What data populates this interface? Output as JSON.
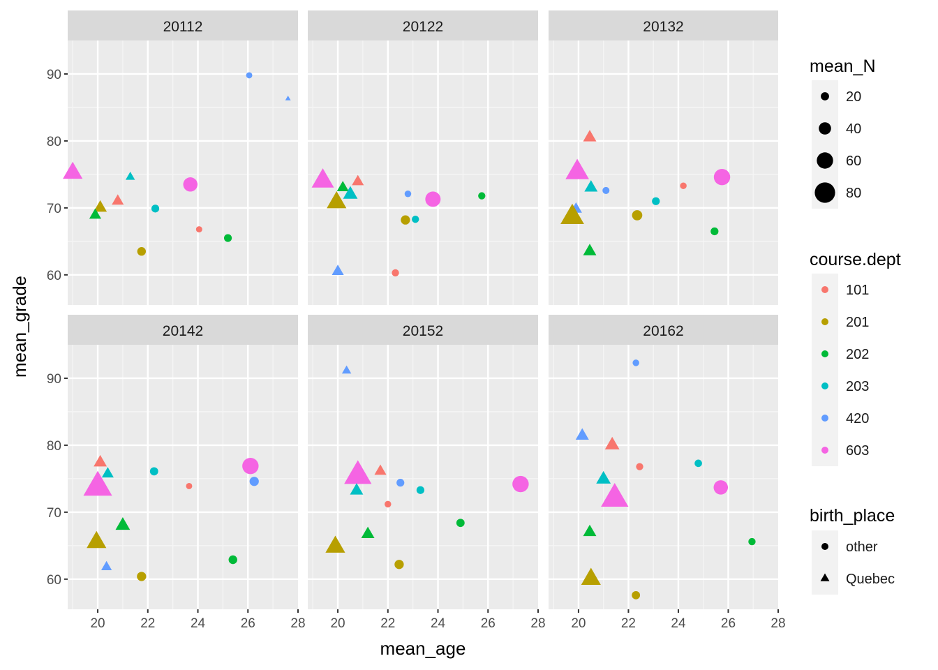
{
  "colors": {
    "panel_bg": "#EBEBEB",
    "strip_bg": "#D9D9D9",
    "grid_major": "#FFFFFF",
    "axis_text": "#4D4D4D",
    "title_text": "#000000"
  },
  "chart_data": {
    "type": "scatter",
    "facet_by": "term",
    "xlabel": "mean_age",
    "ylabel": "mean_grade",
    "xlim": [
      18.8,
      28.0
    ],
    "ylim": [
      55.5,
      95.0
    ],
    "x_ticks": [
      20,
      22,
      24,
      26,
      28
    ],
    "y_ticks": [
      60,
      70,
      80,
      90
    ],
    "grid": true,
    "legend_position": "right",
    "legends": {
      "size": {
        "title": "mean_N",
        "entries": [
          20,
          40,
          60,
          80
        ]
      },
      "color": {
        "title": "course.dept",
        "entries": [
          "101",
          "201",
          "202",
          "203",
          "420",
          "603"
        ],
        "colors": [
          "#F8766D",
          "#B79F00",
          "#00BA38",
          "#00BFC4",
          "#619CFF",
          "#F564E3"
        ]
      },
      "shape": {
        "title": "birth_place",
        "entries": [
          "other",
          "Quebec"
        ],
        "shapes": [
          "circle",
          "triangle"
        ]
      }
    },
    "facets": [
      {
        "label": "20112",
        "points": [
          {
            "x": 26.05,
            "y": 89.8,
            "dept": "420",
            "shape": "circle",
            "n": 10
          },
          {
            "x": 27.6,
            "y": 86.3,
            "dept": "420",
            "shape": "triangle",
            "n": 5
          },
          {
            "x": 19.0,
            "y": 75.2,
            "dept": "603",
            "shape": "triangle",
            "n": 60
          },
          {
            "x": 21.3,
            "y": 74.6,
            "dept": "203",
            "shape": "triangle",
            "n": 20
          },
          {
            "x": 23.7,
            "y": 73.5,
            "dept": "603",
            "shape": "circle",
            "n": 50
          },
          {
            "x": 20.8,
            "y": 71.0,
            "dept": "101",
            "shape": "triangle",
            "n": 30
          },
          {
            "x": 20.1,
            "y": 70.0,
            "dept": "201",
            "shape": "triangle",
            "n": 35
          },
          {
            "x": 22.3,
            "y": 69.9,
            "dept": "203",
            "shape": "circle",
            "n": 18
          },
          {
            "x": 19.9,
            "y": 68.9,
            "dept": "202",
            "shape": "triangle",
            "n": 30
          },
          {
            "x": 24.05,
            "y": 66.8,
            "dept": "101",
            "shape": "circle",
            "n": 10
          },
          {
            "x": 25.2,
            "y": 65.5,
            "dept": "202",
            "shape": "circle",
            "n": 18
          },
          {
            "x": 21.75,
            "y": 63.5,
            "dept": "201",
            "shape": "circle",
            "n": 22
          }
        ]
      },
      {
        "label": "20122",
        "points": [
          {
            "x": 19.4,
            "y": 74.0,
            "dept": "603",
            "shape": "triangle",
            "n": 70
          },
          {
            "x": 20.8,
            "y": 73.9,
            "dept": "101",
            "shape": "triangle",
            "n": 30
          },
          {
            "x": 20.2,
            "y": 73.0,
            "dept": "202",
            "shape": "triangle",
            "n": 30
          },
          {
            "x": 20.5,
            "y": 72.0,
            "dept": "203",
            "shape": "triangle",
            "n": 40
          },
          {
            "x": 22.8,
            "y": 72.1,
            "dept": "420",
            "shape": "circle",
            "n": 12
          },
          {
            "x": 25.75,
            "y": 71.8,
            "dept": "202",
            "shape": "circle",
            "n": 15
          },
          {
            "x": 23.8,
            "y": 71.3,
            "dept": "603",
            "shape": "circle",
            "n": 55
          },
          {
            "x": 19.95,
            "y": 70.8,
            "dept": "201",
            "shape": "triangle",
            "n": 60
          },
          {
            "x": 22.7,
            "y": 68.2,
            "dept": "201",
            "shape": "circle",
            "n": 25
          },
          {
            "x": 23.1,
            "y": 68.3,
            "dept": "203",
            "shape": "circle",
            "n": 15
          },
          {
            "x": 20.0,
            "y": 60.5,
            "dept": "420",
            "shape": "triangle",
            "n": 30
          },
          {
            "x": 22.3,
            "y": 60.3,
            "dept": "101",
            "shape": "circle",
            "n": 15
          }
        ]
      },
      {
        "label": "20132",
        "points": [
          {
            "x": 20.45,
            "y": 80.5,
            "dept": "101",
            "shape": "triangle",
            "n": 35
          },
          {
            "x": 19.95,
            "y": 75.3,
            "dept": "603",
            "shape": "triangle",
            "n": 75
          },
          {
            "x": 24.2,
            "y": 73.3,
            "dept": "101",
            "shape": "circle",
            "n": 12
          },
          {
            "x": 20.5,
            "y": 73.0,
            "dept": "203",
            "shape": "triangle",
            "n": 35
          },
          {
            "x": 25.75,
            "y": 74.6,
            "dept": "603",
            "shape": "circle",
            "n": 60
          },
          {
            "x": 21.1,
            "y": 72.6,
            "dept": "420",
            "shape": "circle",
            "n": 14
          },
          {
            "x": 23.1,
            "y": 71.0,
            "dept": "203",
            "shape": "circle",
            "n": 18
          },
          {
            "x": 19.9,
            "y": 69.8,
            "dept": "420",
            "shape": "triangle",
            "n": 30
          },
          {
            "x": 19.75,
            "y": 68.6,
            "dept": "201",
            "shape": "triangle",
            "n": 75
          },
          {
            "x": 22.35,
            "y": 68.9,
            "dept": "201",
            "shape": "circle",
            "n": 30
          },
          {
            "x": 25.45,
            "y": 66.5,
            "dept": "202",
            "shape": "circle",
            "n": 18
          },
          {
            "x": 20.45,
            "y": 63.5,
            "dept": "202",
            "shape": "triangle",
            "n": 35
          }
        ]
      },
      {
        "label": "20142",
        "points": [
          {
            "x": 20.1,
            "y": 77.4,
            "dept": "101",
            "shape": "triangle",
            "n": 35
          },
          {
            "x": 22.25,
            "y": 76.1,
            "dept": "203",
            "shape": "circle",
            "n": 20
          },
          {
            "x": 26.1,
            "y": 76.9,
            "dept": "603",
            "shape": "circle",
            "n": 60
          },
          {
            "x": 20.4,
            "y": 75.7,
            "dept": "203",
            "shape": "triangle",
            "n": 30
          },
          {
            "x": 26.25,
            "y": 74.6,
            "dept": "420",
            "shape": "circle",
            "n": 25
          },
          {
            "x": 23.65,
            "y": 73.9,
            "dept": "101",
            "shape": "circle",
            "n": 10
          },
          {
            "x": 20.0,
            "y": 73.7,
            "dept": "603",
            "shape": "triangle",
            "n": 95
          },
          {
            "x": 21.0,
            "y": 68.0,
            "dept": "202",
            "shape": "triangle",
            "n": 40
          },
          {
            "x": 19.95,
            "y": 65.5,
            "dept": "201",
            "shape": "triangle",
            "n": 60
          },
          {
            "x": 25.4,
            "y": 62.9,
            "dept": "202",
            "shape": "circle",
            "n": 22
          },
          {
            "x": 20.35,
            "y": 61.8,
            "dept": "420",
            "shape": "triangle",
            "n": 25
          },
          {
            "x": 21.75,
            "y": 60.4,
            "dept": "201",
            "shape": "circle",
            "n": 25
          }
        ]
      },
      {
        "label": "20152",
        "points": [
          {
            "x": 20.35,
            "y": 91.1,
            "dept": "420",
            "shape": "triangle",
            "n": 20
          },
          {
            "x": 21.7,
            "y": 76.1,
            "dept": "101",
            "shape": "triangle",
            "n": 30
          },
          {
            "x": 20.8,
            "y": 75.4,
            "dept": "603",
            "shape": "triangle",
            "n": 90
          },
          {
            "x": 22.5,
            "y": 74.4,
            "dept": "420",
            "shape": "circle",
            "n": 18
          },
          {
            "x": 27.3,
            "y": 74.2,
            "dept": "603",
            "shape": "circle",
            "n": 60
          },
          {
            "x": 20.75,
            "y": 73.2,
            "dept": "203",
            "shape": "triangle",
            "n": 35
          },
          {
            "x": 23.3,
            "y": 73.3,
            "dept": "203",
            "shape": "circle",
            "n": 18
          },
          {
            "x": 22.0,
            "y": 71.2,
            "dept": "101",
            "shape": "circle",
            "n": 12
          },
          {
            "x": 24.9,
            "y": 68.4,
            "dept": "202",
            "shape": "circle",
            "n": 20
          },
          {
            "x": 21.2,
            "y": 66.7,
            "dept": "202",
            "shape": "triangle",
            "n": 35
          },
          {
            "x": 19.9,
            "y": 64.8,
            "dept": "201",
            "shape": "triangle",
            "n": 60
          },
          {
            "x": 22.45,
            "y": 62.2,
            "dept": "201",
            "shape": "circle",
            "n": 25
          }
        ]
      },
      {
        "label": "20162",
        "points": [
          {
            "x": 22.3,
            "y": 92.3,
            "dept": "420",
            "shape": "circle",
            "n": 12
          },
          {
            "x": 20.15,
            "y": 81.4,
            "dept": "420",
            "shape": "triangle",
            "n": 35
          },
          {
            "x": 21.35,
            "y": 80.0,
            "dept": "101",
            "shape": "triangle",
            "n": 40
          },
          {
            "x": 24.8,
            "y": 77.3,
            "dept": "203",
            "shape": "circle",
            "n": 16
          },
          {
            "x": 22.45,
            "y": 76.8,
            "dept": "101",
            "shape": "circle",
            "n": 15
          },
          {
            "x": 21.0,
            "y": 74.9,
            "dept": "203",
            "shape": "triangle",
            "n": 40
          },
          {
            "x": 25.7,
            "y": 73.7,
            "dept": "603",
            "shape": "circle",
            "n": 50
          },
          {
            "x": 21.45,
            "y": 72.0,
            "dept": "603",
            "shape": "triangle",
            "n": 90
          },
          {
            "x": 20.45,
            "y": 67.0,
            "dept": "202",
            "shape": "triangle",
            "n": 35
          },
          {
            "x": 26.95,
            "y": 65.6,
            "dept": "202",
            "shape": "circle",
            "n": 15
          },
          {
            "x": 20.5,
            "y": 60.0,
            "dept": "201",
            "shape": "triangle",
            "n": 60
          },
          {
            "x": 22.3,
            "y": 57.6,
            "dept": "201",
            "shape": "circle",
            "n": 20
          }
        ]
      }
    ]
  }
}
